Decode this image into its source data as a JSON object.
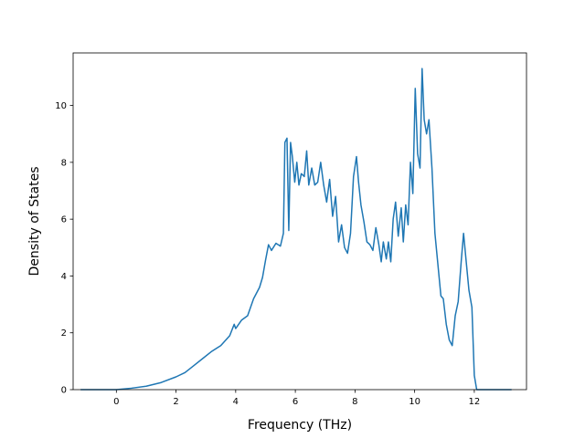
{
  "chart_data": {
    "type": "line",
    "title": "",
    "xlabel": "Frequency (THz)",
    "ylabel": "Density of States",
    "xlim": [
      -1.45,
      13.75
    ],
    "ylim": [
      0,
      11.85
    ],
    "grid": false,
    "legend": "none",
    "x_ticks": [
      0,
      2,
      4,
      6,
      8,
      10,
      12
    ],
    "y_ticks": [
      0,
      2,
      4,
      6,
      8,
      10
    ],
    "series": [
      {
        "name": "",
        "color": "#1f77b4",
        "points": [
          [
            -1.2,
            0.0
          ],
          [
            0.0,
            0.0
          ],
          [
            0.5,
            0.05
          ],
          [
            1.0,
            0.12
          ],
          [
            1.5,
            0.25
          ],
          [
            2.0,
            0.45
          ],
          [
            2.3,
            0.6
          ],
          [
            2.6,
            0.85
          ],
          [
            2.9,
            1.1
          ],
          [
            3.2,
            1.35
          ],
          [
            3.5,
            1.55
          ],
          [
            3.8,
            1.9
          ],
          [
            3.95,
            2.3
          ],
          [
            4.0,
            2.15
          ],
          [
            4.2,
            2.45
          ],
          [
            4.4,
            2.6
          ],
          [
            4.6,
            3.2
          ],
          [
            4.8,
            3.6
          ],
          [
            4.9,
            3.95
          ],
          [
            5.0,
            4.55
          ],
          [
            5.1,
            5.1
          ],
          [
            5.2,
            4.9
          ],
          [
            5.35,
            5.15
          ],
          [
            5.5,
            5.05
          ],
          [
            5.6,
            5.5
          ],
          [
            5.65,
            8.7
          ],
          [
            5.72,
            8.85
          ],
          [
            5.78,
            5.6
          ],
          [
            5.84,
            8.7
          ],
          [
            5.9,
            8.2
          ],
          [
            5.98,
            7.3
          ],
          [
            6.05,
            8.0
          ],
          [
            6.12,
            7.2
          ],
          [
            6.2,
            7.6
          ],
          [
            6.3,
            7.5
          ],
          [
            6.38,
            8.4
          ],
          [
            6.45,
            7.2
          ],
          [
            6.55,
            7.8
          ],
          [
            6.65,
            7.2
          ],
          [
            6.75,
            7.3
          ],
          [
            6.85,
            8.0
          ],
          [
            6.95,
            7.2
          ],
          [
            7.05,
            6.6
          ],
          [
            7.15,
            7.4
          ],
          [
            7.25,
            6.1
          ],
          [
            7.35,
            6.8
          ],
          [
            7.45,
            5.2
          ],
          [
            7.55,
            5.8
          ],
          [
            7.65,
            5.0
          ],
          [
            7.75,
            4.8
          ],
          [
            7.85,
            5.5
          ],
          [
            7.95,
            7.5
          ],
          [
            8.05,
            8.2
          ],
          [
            8.12,
            7.3
          ],
          [
            8.2,
            6.5
          ],
          [
            8.3,
            5.9
          ],
          [
            8.4,
            5.2
          ],
          [
            8.5,
            5.1
          ],
          [
            8.6,
            4.9
          ],
          [
            8.7,
            5.7
          ],
          [
            8.8,
            5.1
          ],
          [
            8.88,
            4.5
          ],
          [
            8.95,
            5.2
          ],
          [
            9.05,
            4.6
          ],
          [
            9.12,
            5.2
          ],
          [
            9.2,
            4.5
          ],
          [
            9.28,
            6.0
          ],
          [
            9.36,
            6.6
          ],
          [
            9.45,
            5.4
          ],
          [
            9.55,
            6.4
          ],
          [
            9.62,
            5.2
          ],
          [
            9.7,
            6.5
          ],
          [
            9.78,
            5.8
          ],
          [
            9.86,
            8.0
          ],
          [
            9.94,
            6.9
          ],
          [
            10.02,
            10.6
          ],
          [
            10.1,
            8.3
          ],
          [
            10.18,
            7.8
          ],
          [
            10.25,
            11.3
          ],
          [
            10.32,
            9.5
          ],
          [
            10.4,
            9.0
          ],
          [
            10.48,
            9.5
          ],
          [
            10.58,
            7.8
          ],
          [
            10.68,
            5.5
          ],
          [
            10.78,
            4.4
          ],
          [
            10.88,
            3.3
          ],
          [
            10.96,
            3.2
          ],
          [
            11.06,
            2.3
          ],
          [
            11.16,
            1.75
          ],
          [
            11.26,
            1.55
          ],
          [
            11.36,
            2.6
          ],
          [
            11.46,
            3.1
          ],
          [
            11.56,
            4.5
          ],
          [
            11.64,
            5.5
          ],
          [
            11.72,
            4.6
          ],
          [
            11.82,
            3.5
          ],
          [
            11.92,
            2.9
          ],
          [
            12.0,
            0.5
          ],
          [
            12.08,
            0.0
          ],
          [
            12.3,
            0.0
          ],
          [
            13.25,
            0.0
          ]
        ]
      }
    ]
  }
}
